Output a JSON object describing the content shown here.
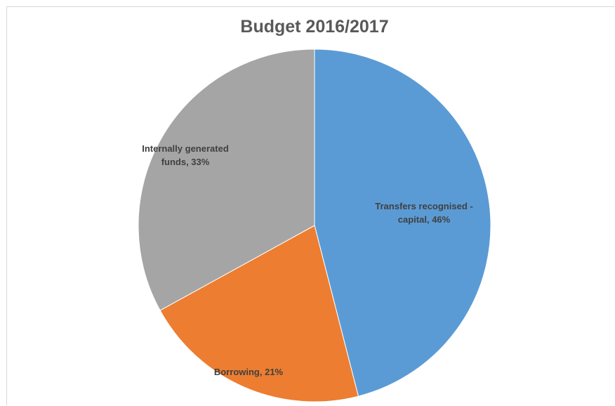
{
  "chart_data": {
    "type": "pie",
    "title": "Budget 2016/2017",
    "slices": [
      {
        "label": "Transfers recognised - capital",
        "value": 46,
        "display": [
          "Transfers recognised -",
          "capital, 46%"
        ],
        "color": "#5b9bd5"
      },
      {
        "label": "Borrowing",
        "value": 21,
        "display": [
          "Borrowing, 21%"
        ],
        "color": "#ed7d31"
      },
      {
        "label": "Internally generated funds",
        "value": 33,
        "display": [
          "Internally generated",
          "funds, 33%"
        ],
        "color": "#a5a5a5"
      }
    ],
    "legend": "none",
    "data_labels": "inside"
  }
}
